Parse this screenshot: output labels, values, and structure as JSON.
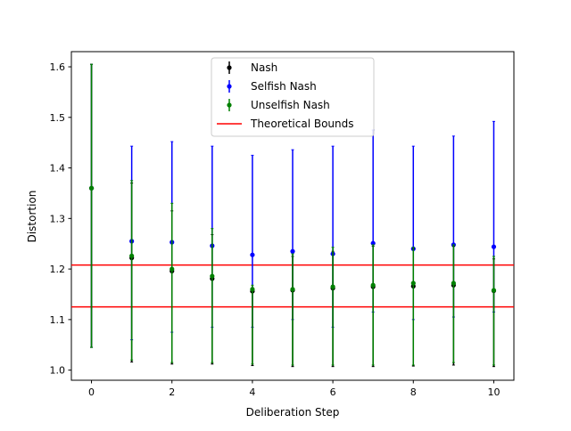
{
  "chart_data": {
    "type": "scatter",
    "title": "",
    "xlabel": "Deliberation Step",
    "ylabel": "Distortion",
    "xlim": [
      -0.5,
      10.5
    ],
    "ylim": [
      0.98,
      1.63
    ],
    "x_ticks": [
      "0",
      "2",
      "4",
      "6",
      "8",
      "10"
    ],
    "y_ticks": [
      "1.0",
      "1.1",
      "1.2",
      "1.3",
      "1.4",
      "1.5",
      "1.6"
    ],
    "grid": false,
    "legend_position": "top-center",
    "series": [
      {
        "name": "Nash",
        "color": "#000000",
        "x": [
          0,
          1,
          2,
          3,
          4,
          5,
          6,
          7,
          8,
          9,
          10
        ],
        "y": [
          1.36,
          1.222,
          1.196,
          1.181,
          1.156,
          1.158,
          1.162,
          1.165,
          1.166,
          1.168,
          1.157
        ],
        "lower": [
          1.045,
          1.016,
          1.012,
          1.012,
          1.009,
          1.007,
          1.007,
          1.007,
          1.008,
          1.01,
          1.007
        ],
        "upper": [
          1.605,
          1.37,
          1.315,
          1.268,
          1.163,
          1.225,
          1.235,
          1.245,
          1.24,
          1.245,
          1.22
        ]
      },
      {
        "name": "Selfish Nash",
        "color": "#0000ff",
        "x": [
          0,
          1,
          2,
          3,
          4,
          5,
          6,
          7,
          8,
          9,
          10
        ],
        "y": [
          1.36,
          1.255,
          1.253,
          1.246,
          1.228,
          1.235,
          1.23,
          1.251,
          1.24,
          1.248,
          1.244
        ],
        "lower": [
          1.045,
          1.06,
          1.075,
          1.085,
          1.085,
          1.1,
          1.085,
          1.115,
          1.1,
          1.105,
          1.115
        ],
        "upper": [
          1.605,
          1.443,
          1.452,
          1.443,
          1.425,
          1.436,
          1.443,
          1.475,
          1.443,
          1.463,
          1.492
        ]
      },
      {
        "name": "Unselfish Nash",
        "color": "#008000",
        "x": [
          0,
          1,
          2,
          3,
          4,
          5,
          6,
          7,
          8,
          9,
          10
        ],
        "y": [
          1.36,
          1.226,
          1.2,
          1.186,
          1.16,
          1.16,
          1.165,
          1.168,
          1.172,
          1.172,
          1.158
        ],
        "lower": [
          1.045,
          1.02,
          1.015,
          1.015,
          1.012,
          1.01,
          1.01,
          1.01,
          1.01,
          1.015,
          1.01
        ],
        "upper": [
          1.605,
          1.375,
          1.33,
          1.28,
          1.168,
          1.23,
          1.243,
          1.248,
          1.243,
          1.248,
          1.225
        ]
      }
    ],
    "reference_lines": {
      "name": "Theoretical Bounds",
      "color": "#ff0000",
      "values": [
        1.125,
        1.208
      ]
    }
  }
}
